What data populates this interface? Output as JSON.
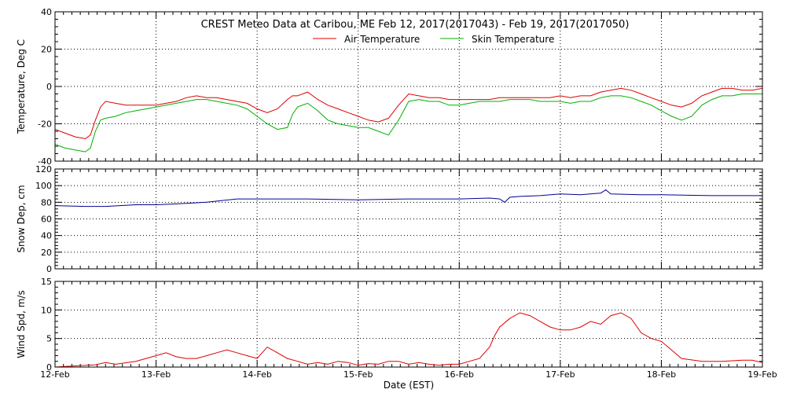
{
  "title": "CREST Meteo Data at Caribou, ME   Feb 12, 2017(2017043) - Feb 19, 2017(2017050)",
  "xlabel": "Date (EST)",
  "x_ticks": [
    "12-Feb",
    "13-Feb",
    "14-Feb",
    "15-Feb",
    "16-Feb",
    "17-Feb",
    "18-Feb",
    "19-Feb"
  ],
  "chart_data": [
    {
      "type": "line",
      "ylabel": "Temperature, Deg C",
      "ylim": [
        -40,
        40
      ],
      "yticks": [
        -40,
        -20,
        0,
        20,
        40
      ],
      "xlim": [
        0,
        7
      ],
      "grid": true,
      "legend": "top-center",
      "series": [
        {
          "name": "Air Temperature",
          "color": "#dd0000",
          "x": [
            0,
            0.1,
            0.2,
            0.3,
            0.35,
            0.4,
            0.45,
            0.5,
            0.6,
            0.7,
            0.8,
            0.9,
            1.0,
            1.1,
            1.2,
            1.3,
            1.4,
            1.5,
            1.6,
            1.7,
            1.8,
            1.9,
            2.0,
            2.1,
            2.2,
            2.3,
            2.35,
            2.4,
            2.5,
            2.6,
            2.7,
            2.8,
            2.9,
            3.0,
            3.1,
            3.2,
            3.3,
            3.4,
            3.5,
            3.6,
            3.7,
            3.8,
            3.9,
            4.0,
            4.1,
            4.2,
            4.3,
            4.4,
            4.5,
            4.6,
            4.7,
            4.8,
            4.9,
            5.0,
            5.1,
            5.2,
            5.3,
            5.4,
            5.5,
            5.6,
            5.7,
            5.8,
            5.9,
            6.0,
            6.1,
            6.2,
            6.3,
            6.4,
            6.5,
            6.6,
            6.7,
            6.8,
            6.9,
            7.0
          ],
          "y": [
            -23,
            -25,
            -27,
            -28,
            -26,
            -18,
            -11,
            -8,
            -9,
            -10,
            -10,
            -10,
            -10,
            -9,
            -8,
            -6,
            -5,
            -6,
            -6,
            -7,
            -8,
            -9,
            -12,
            -14,
            -12,
            -7,
            -5,
            -5,
            -3,
            -7,
            -10,
            -12,
            -14,
            -16,
            -18,
            -19,
            -17,
            -10,
            -4,
            -5,
            -6,
            -6,
            -7,
            -7,
            -7,
            -7,
            -7,
            -6,
            -6,
            -6,
            -6,
            -6,
            -6,
            -5,
            -6,
            -5,
            -5,
            -3,
            -2,
            -1,
            -2,
            -4,
            -6,
            -8,
            -10,
            -11,
            -9,
            -5,
            -3,
            -1,
            -1,
            -2,
            -2,
            -1
          ]
        },
        {
          "name": "Skin Temperature",
          "color": "#00b000",
          "x": [
            0,
            0.1,
            0.2,
            0.3,
            0.35,
            0.4,
            0.45,
            0.5,
            0.6,
            0.7,
            0.8,
            0.9,
            1.0,
            1.1,
            1.2,
            1.3,
            1.4,
            1.5,
            1.6,
            1.7,
            1.8,
            1.9,
            2.0,
            2.1,
            2.2,
            2.3,
            2.35,
            2.4,
            2.5,
            2.6,
            2.7,
            2.8,
            2.9,
            3.0,
            3.1,
            3.2,
            3.3,
            3.4,
            3.5,
            3.6,
            3.7,
            3.8,
            3.9,
            4.0,
            4.1,
            4.2,
            4.3,
            4.4,
            4.5,
            4.6,
            4.7,
            4.8,
            4.9,
            5.0,
            5.1,
            5.2,
            5.3,
            5.4,
            5.5,
            5.6,
            5.7,
            5.8,
            5.9,
            6.0,
            6.1,
            6.2,
            6.3,
            6.4,
            6.5,
            6.6,
            6.7,
            6.8,
            6.9,
            7.0
          ],
          "y": [
            -31,
            -33,
            -34,
            -35,
            -33,
            -24,
            -18,
            -17,
            -16,
            -14,
            -13,
            -12,
            -11,
            -10,
            -9,
            -8,
            -7,
            -7,
            -8,
            -9,
            -10,
            -12,
            -16,
            -20,
            -23,
            -22,
            -15,
            -11,
            -9,
            -13,
            -18,
            -20,
            -21,
            -22,
            -22,
            -24,
            -26,
            -18,
            -8,
            -7,
            -8,
            -8,
            -10,
            -10,
            -9,
            -8,
            -8,
            -8,
            -7,
            -7,
            -7,
            -8,
            -8,
            -8,
            -9,
            -8,
            -8,
            -6,
            -5,
            -5,
            -6,
            -8,
            -10,
            -13,
            -16,
            -18,
            -16,
            -10,
            -7,
            -5,
            -5,
            -4,
            -4,
            -4
          ]
        }
      ]
    },
    {
      "type": "line",
      "ylabel": "Snow Dep, cm",
      "ylim": [
        0,
        120
      ],
      "yticks": [
        0,
        20,
        40,
        60,
        80,
        100,
        120
      ],
      "xlim": [
        0,
        7
      ],
      "grid": true,
      "series": [
        {
          "color": "#000090",
          "x": [
            0,
            0.3,
            0.5,
            0.8,
            1.0,
            1.2,
            1.5,
            1.8,
            2.0,
            2.5,
            3.0,
            3.5,
            4.0,
            4.3,
            4.4,
            4.45,
            4.5,
            4.6,
            4.8,
            5.0,
            5.2,
            5.4,
            5.45,
            5.5,
            5.8,
            6.0,
            6.5,
            7.0
          ],
          "y": [
            76,
            75,
            75,
            77,
            77,
            78,
            80,
            84,
            84,
            84,
            83,
            84,
            84,
            85,
            84,
            80,
            86,
            87,
            88,
            90,
            89,
            91,
            95,
            90,
            89,
            89,
            88,
            88
          ]
        }
      ]
    },
    {
      "type": "line",
      "ylabel": "Wind Spd, m/s",
      "ylim": [
        0,
        15
      ],
      "yticks": [
        0,
        5,
        10,
        15
      ],
      "xlim": [
        0,
        7
      ],
      "grid": true,
      "series": [
        {
          "color": "#dd0000",
          "x": [
            0,
            0.2,
            0.4,
            0.5,
            0.6,
            0.8,
            0.9,
            1.0,
            1.1,
            1.2,
            1.3,
            1.4,
            1.5,
            1.6,
            1.7,
            1.8,
            1.9,
            2.0,
            2.1,
            2.2,
            2.3,
            2.4,
            2.5,
            2.6,
            2.7,
            2.8,
            2.9,
            3.0,
            3.1,
            3.2,
            3.3,
            3.4,
            3.5,
            3.6,
            3.7,
            3.8,
            3.9,
            4.0,
            4.1,
            4.2,
            4.3,
            4.35,
            4.4,
            4.5,
            4.6,
            4.7,
            4.8,
            4.9,
            5.0,
            5.1,
            5.2,
            5.3,
            5.4,
            5.5,
            5.6,
            5.7,
            5.8,
            5.9,
            6.0,
            6.2,
            6.4,
            6.6,
            6.8,
            6.9,
            7.0
          ],
          "y": [
            0,
            0.2,
            0.4,
            0.8,
            0.5,
            1.0,
            1.5,
            2.0,
            2.5,
            1.8,
            1.5,
            1.5,
            2.0,
            2.5,
            3.0,
            2.5,
            2.0,
            1.5,
            3.5,
            2.5,
            1.5,
            1.0,
            0.5,
            0.8,
            0.5,
            1.0,
            0.8,
            0.3,
            0.6,
            0.5,
            1.0,
            1.0,
            0.5,
            0.8,
            0.5,
            0.3,
            0.5,
            0.5,
            1.0,
            1.5,
            3.5,
            5.5,
            7.0,
            8.5,
            9.5,
            9.0,
            8.0,
            7.0,
            6.5,
            6.5,
            7.0,
            8.0,
            7.5,
            9.0,
            9.5,
            8.5,
            6.0,
            5.0,
            4.5,
            1.5,
            1.0,
            1.0,
            1.2,
            1.2,
            0.8
          ]
        }
      ]
    }
  ]
}
